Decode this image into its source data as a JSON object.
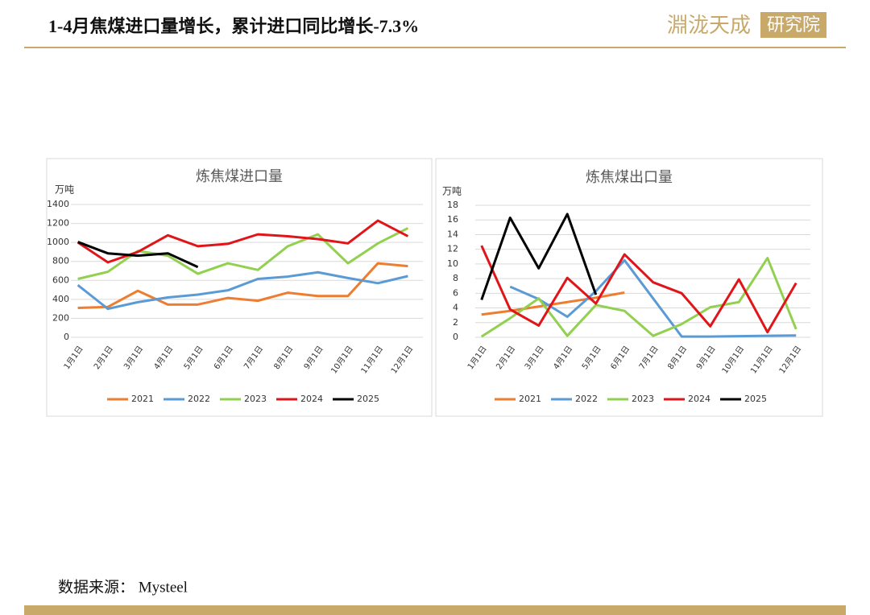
{
  "header": {
    "title": "1-4月焦煤进口量增长，累计进口同比增长-7.3%",
    "logo": "淵泷天成",
    "logo_box": "研究院"
  },
  "footer": {
    "source": "数据来源： Mysteel"
  },
  "chart_data": [
    {
      "type": "line",
      "title": "炼焦煤进口量",
      "y_unit": "万吨",
      "categories": [
        "1月1日",
        "2月1日",
        "3月1日",
        "4月1日",
        "5月1日",
        "6月1日",
        "7月1日",
        "8月1日",
        "9月1日",
        "10月1日",
        "11月1日",
        "12月1日"
      ],
      "ylim": [
        0,
        1400
      ],
      "yticks": [
        0,
        200,
        400,
        600,
        800,
        1000,
        1200,
        1400
      ],
      "grid": true,
      "legend": "bottom",
      "series": [
        {
          "name": "2021",
          "color": "#ed7d31",
          "values": [
            310,
            320,
            490,
            345,
            345,
            415,
            385,
            470,
            435,
            435,
            780,
            750
          ]
        },
        {
          "name": "2022",
          "color": "#5b9bd5",
          "values": [
            550,
            300,
            370,
            420,
            450,
            495,
            615,
            640,
            685,
            625,
            570,
            645
          ]
        },
        {
          "name": "2023",
          "color": "#92d050",
          "values": [
            615,
            690,
            910,
            860,
            670,
            780,
            710,
            960,
            1085,
            780,
            990,
            1150
          ]
        },
        {
          "name": "2024",
          "color": "#e0151a",
          "values": [
            1000,
            790,
            900,
            1075,
            960,
            985,
            1085,
            1065,
            1035,
            990,
            1230,
            1065
          ]
        },
        {
          "name": "2025",
          "color": "#000000",
          "values": [
            1005,
            885,
            860,
            885,
            740,
            null,
            null,
            null,
            null,
            null,
            null,
            null
          ]
        }
      ]
    },
    {
      "type": "line",
      "title": "炼焦煤出口量",
      "y_unit": "万吨",
      "categories": [
        "1月1日",
        "2月1日",
        "3月1日",
        "4月1日",
        "5月1日",
        "6月1日",
        "7月1日",
        "8月1日",
        "9月1日",
        "10月1日",
        "11月1日",
        "12月1日"
      ],
      "ylim": [
        0,
        18
      ],
      "yticks": [
        0,
        2,
        4,
        6,
        8,
        10,
        12,
        14,
        16,
        18
      ],
      "grid": true,
      "legend": "bottom",
      "series": [
        {
          "name": "2021",
          "color": "#ed7d31",
          "values": [
            3.1,
            3.6,
            4.2,
            4.8,
            5.4,
            6.1,
            null,
            null,
            null,
            null,
            null,
            null
          ]
        },
        {
          "name": "2022",
          "color": "#5b9bd5",
          "values": [
            null,
            6.9,
            5.2,
            2.8,
            6.3,
            10.5,
            5.3,
            0.1,
            0.1,
            0.15,
            0.2,
            0.25
          ]
        },
        {
          "name": "2023",
          "color": "#92d050",
          "values": [
            0.1,
            2.6,
            5.3,
            0.2,
            4.4,
            3.6,
            0.2,
            1.8,
            4.1,
            4.8,
            10.8,
            1.1
          ]
        },
        {
          "name": "2024",
          "color": "#e0151a",
          "values": [
            12.5,
            3.8,
            1.6,
            8.1,
            4.6,
            11.3,
            7.5,
            6.0,
            1.5,
            7.9,
            0.7,
            7.4
          ]
        },
        {
          "name": "2025",
          "color": "#000000",
          "values": [
            5.1,
            16.3,
            9.4,
            16.8,
            5.8,
            null,
            null,
            null,
            null,
            null,
            null,
            null
          ]
        }
      ]
    }
  ]
}
